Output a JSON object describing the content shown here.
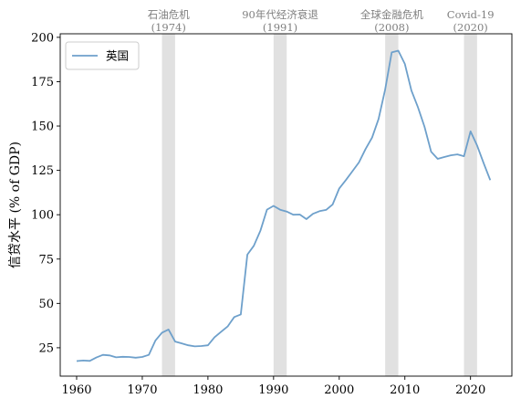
{
  "chart_data": {
    "type": "line",
    "ylabel": "信贷水平 (% of GDP)",
    "xlabel": "",
    "xlim": [
      1957.5,
      2026.3
    ],
    "ylim": [
      9,
      202
    ],
    "xticks": [
      1960,
      1970,
      1980,
      1990,
      2000,
      2010,
      2020
    ],
    "yticks": [
      25,
      50,
      75,
      100,
      125,
      150,
      175,
      200
    ],
    "grid": false,
    "legend": {
      "placement": "top-left"
    },
    "series": [
      {
        "name": "英国",
        "color": "#6ea0cb",
        "x": [
          1960,
          1961,
          1962,
          1963,
          1964,
          1965,
          1966,
          1967,
          1968,
          1969,
          1970,
          1971,
          1972,
          1973,
          1974,
          1975,
          1976,
          1977,
          1978,
          1979,
          1980,
          1981,
          1982,
          1983,
          1984,
          1985,
          1986,
          1987,
          1988,
          1989,
          1990,
          1991,
          1992,
          1993,
          1994,
          1995,
          1996,
          1997,
          1998,
          1999,
          2000,
          2001,
          2002,
          2003,
          2004,
          2005,
          2006,
          2007,
          2008,
          2009,
          2010,
          2011,
          2012,
          2013,
          2014,
          2015,
          2016,
          2017,
          2018,
          2019,
          2020,
          2021,
          2022,
          2023
        ],
        "values": [
          17.5,
          17.8,
          17.6,
          19.5,
          21,
          20.7,
          19.6,
          19.9,
          19.8,
          19.4,
          19.8,
          21,
          29,
          33.5,
          35.3,
          28.5,
          27.5,
          26.4,
          25.8,
          26,
          26.4,
          30.9,
          34,
          37,
          42.3,
          43.8,
          77.5,
          82.5,
          91,
          102.9,
          105,
          102.8,
          101.8,
          100,
          100.1,
          97.5,
          100.5,
          102,
          102.7,
          105.8,
          114.8,
          119.5,
          124.5,
          129.5,
          137,
          143.5,
          154,
          170.5,
          191.5,
          192.5,
          185,
          170,
          160.5,
          149.5,
          135.5,
          131.5,
          132.5,
          133.5,
          134,
          133,
          147,
          139,
          129,
          119.5
        ]
      }
    ],
    "shaded_periods": [
      {
        "start": 1973,
        "end": 1975,
        "label_name": "石油危机",
        "label_year": "(1974)"
      },
      {
        "start": 1990,
        "end": 1992,
        "label_name": "90年代经济衰退",
        "label_year": "(1991)"
      },
      {
        "start": 2007,
        "end": 2009,
        "label_name": "全球金融危机",
        "label_year": "(2008)"
      },
      {
        "start": 2019,
        "end": 2021,
        "label_name": "Covid-19",
        "label_year": "(2020)"
      }
    ],
    "colors": {
      "shade": "#e1e1e1",
      "crisis_label": "#7f7f7f",
      "axes": "#000000"
    }
  }
}
